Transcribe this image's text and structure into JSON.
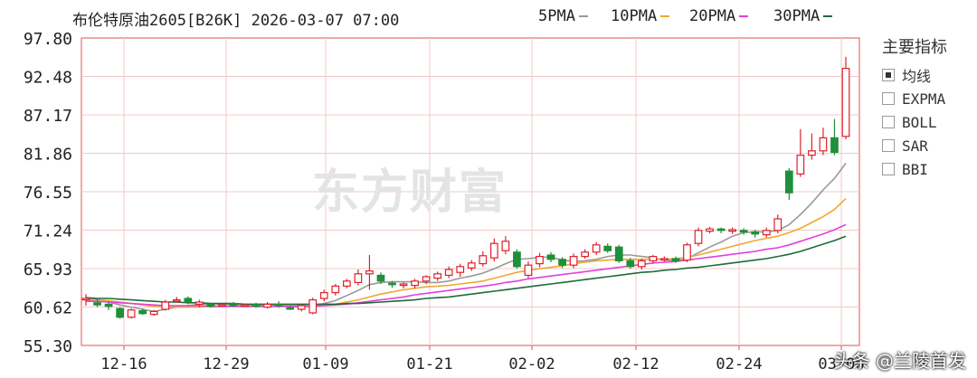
{
  "header": {
    "title": "布伦特原油2605[B26K] 2026-03-07 07:00"
  },
  "ma_legend": [
    {
      "label": "5PMA",
      "color": "#999999"
    },
    {
      "label": "10PMA",
      "color": "#f0a830"
    },
    {
      "label": "20PMA",
      "color": "#e040e0"
    },
    {
      "label": "30PMA",
      "color": "#1f6b3c"
    }
  ],
  "indicators": {
    "title": "主要指标",
    "items": [
      {
        "label": "均线",
        "checked": true
      },
      {
        "label": "EXPMA",
        "checked": false
      },
      {
        "label": "BOLL",
        "checked": false
      },
      {
        "label": "SAR",
        "checked": false
      },
      {
        "label": "BBI",
        "checked": false
      }
    ]
  },
  "watermark": "东方财富",
  "credit": "头条 @兰陵首发",
  "colors": {
    "up": "#e0202a",
    "down": "#1f8f3a",
    "axis": "#e05050"
  },
  "chart_data": {
    "type": "candlestick",
    "y_ticks": [
      "97.80",
      "92.48",
      "87.17",
      "81.86",
      "76.55",
      "71.24",
      "65.93",
      "60.62",
      "55.30"
    ],
    "ylim": [
      55.3,
      97.8
    ],
    "x_ticks": [
      "12-16",
      "12-29",
      "01-09",
      "01-21",
      "02-02",
      "02-12",
      "02-24",
      "03-06"
    ],
    "candles": [
      [
        61.6,
        61.8,
        60.8,
        62.4
      ],
      [
        61.2,
        60.9,
        60.6,
        61.8
      ],
      [
        61.0,
        60.7,
        60.2,
        61.4
      ],
      [
        60.4,
        59.2,
        59.0,
        60.6
      ],
      [
        59.2,
        60.2,
        59.0,
        60.4
      ],
      [
        60.1,
        59.7,
        59.5,
        60.4
      ],
      [
        59.6,
        60.0,
        59.4,
        60.2
      ],
      [
        60.3,
        61.3,
        60.1,
        61.6
      ],
      [
        61.5,
        61.6,
        61.2,
        62.0
      ],
      [
        61.8,
        61.3,
        61.0,
        62.1
      ],
      [
        61.0,
        61.3,
        60.6,
        61.6
      ],
      [
        61.0,
        60.7,
        60.5,
        61.2
      ],
      [
        60.8,
        60.9,
        60.6,
        61.1
      ],
      [
        61.1,
        60.8,
        60.6,
        61.3
      ],
      [
        60.8,
        60.9,
        60.6,
        61.1
      ],
      [
        61.0,
        60.7,
        60.5,
        61.2
      ],
      [
        60.6,
        61.0,
        60.4,
        61.3
      ],
      [
        61.0,
        60.8,
        60.5,
        61.4
      ],
      [
        60.5,
        60.4,
        60.2,
        60.8
      ],
      [
        60.3,
        60.8,
        60.0,
        61.1
      ],
      [
        59.8,
        61.6,
        59.6,
        61.9
      ],
      [
        61.8,
        62.6,
        61.4,
        63.0
      ],
      [
        62.6,
        63.5,
        62.2,
        63.8
      ],
      [
        63.5,
        64.2,
        63.2,
        64.5
      ],
      [
        64.0,
        65.2,
        63.6,
        65.8
      ],
      [
        65.2,
        65.6,
        63.0,
        67.8
      ],
      [
        65.0,
        64.2,
        63.8,
        65.4
      ],
      [
        63.9,
        63.7,
        63.3,
        64.2
      ],
      [
        63.6,
        63.8,
        63.2,
        64.0
      ],
      [
        63.6,
        64.2,
        63.2,
        64.5
      ],
      [
        64.2,
        64.8,
        63.8,
        65.0
      ],
      [
        64.6,
        65.2,
        64.2,
        65.5
      ],
      [
        65.0,
        65.8,
        64.6,
        66.2
      ],
      [
        65.4,
        66.2,
        64.8,
        66.6
      ],
      [
        66.0,
        66.7,
        65.6,
        67.1
      ],
      [
        66.6,
        67.7,
        66.2,
        68.3
      ],
      [
        67.4,
        69.4,
        66.9,
        70.1
      ],
      [
        68.4,
        69.7,
        67.9,
        70.4
      ],
      [
        68.2,
        66.2,
        65.9,
        68.6
      ],
      [
        65.0,
        66.4,
        64.6,
        66.9
      ],
      [
        66.6,
        67.6,
        66.1,
        68.1
      ],
      [
        67.8,
        67.2,
        66.8,
        68.2
      ],
      [
        67.2,
        66.4,
        66.0,
        67.5
      ],
      [
        66.4,
        67.6,
        66.0,
        68.0
      ],
      [
        67.6,
        68.2,
        67.3,
        68.6
      ],
      [
        68.2,
        69.2,
        67.8,
        69.6
      ],
      [
        69.0,
        68.4,
        68.1,
        69.4
      ],
      [
        68.9,
        67.0,
        66.7,
        69.2
      ],
      [
        67.0,
        66.2,
        65.9,
        67.4
      ],
      [
        66.2,
        67.0,
        65.8,
        67.3
      ],
      [
        67.0,
        67.6,
        66.6,
        67.8
      ],
      [
        67.2,
        67.3,
        66.9,
        67.6
      ],
      [
        67.3,
        67.0,
        66.7,
        67.6
      ],
      [
        67.1,
        69.2,
        66.8,
        69.5
      ],
      [
        69.4,
        71.2,
        69.0,
        71.6
      ],
      [
        71.1,
        71.4,
        70.8,
        71.7
      ],
      [
        71.4,
        71.2,
        70.8,
        71.6
      ],
      [
        71.1,
        71.3,
        70.7,
        71.6
      ],
      [
        71.2,
        71.0,
        70.6,
        71.5
      ],
      [
        71.0,
        70.7,
        70.2,
        71.3
      ],
      [
        70.6,
        71.2,
        70.2,
        71.6
      ],
      [
        71.2,
        72.8,
        70.8,
        73.4
      ],
      [
        79.4,
        76.4,
        75.4,
        79.8
      ],
      [
        79.0,
        81.6,
        78.6,
        85.2
      ],
      [
        81.6,
        82.2,
        81.0,
        84.6
      ],
      [
        82.2,
        84.0,
        81.6,
        85.4
      ],
      [
        84.0,
        82.0,
        81.6,
        86.6
      ],
      [
        84.2,
        93.6,
        83.8,
        95.2
      ]
    ],
    "series": [
      {
        "name": "5PMA",
        "values": [
          61.8,
          61.7,
          61.3,
          60.9,
          60.6,
          60.3,
          60.0,
          60.3,
          60.6,
          60.8,
          61.0,
          61.0,
          61.0,
          61.0,
          60.9,
          60.8,
          60.8,
          60.8,
          60.7,
          60.6,
          60.8,
          61.1,
          61.5,
          62.2,
          62.9,
          63.7,
          64.0,
          64.1,
          64.1,
          64.1,
          64.0,
          64.0,
          64.2,
          64.6,
          64.9,
          65.3,
          65.9,
          66.6,
          67.2,
          67.3,
          67.5,
          67.5,
          67.1,
          66.9,
          67.0,
          67.2,
          67.6,
          67.8,
          67.8,
          67.6,
          67.4,
          67.1,
          67.0,
          67.3,
          68.1,
          68.9,
          69.6,
          70.4,
          70.9,
          71.0,
          71.0,
          71.2,
          72.0,
          73.4,
          75.0,
          76.8,
          78.4,
          80.5
        ]
      },
      {
        "name": "10PMA",
        "values": [
          61.6,
          61.6,
          61.5,
          61.3,
          61.1,
          60.9,
          60.7,
          60.6,
          60.6,
          60.6,
          60.6,
          60.7,
          60.7,
          60.8,
          60.9,
          60.9,
          60.9,
          60.9,
          60.9,
          60.8,
          60.8,
          60.9,
          61.0,
          61.3,
          61.6,
          62.0,
          62.4,
          62.7,
          63.0,
          63.2,
          63.4,
          63.5,
          63.6,
          63.8,
          64.0,
          64.2,
          64.6,
          65.0,
          65.4,
          65.7,
          65.9,
          66.1,
          66.3,
          66.6,
          66.8,
          67.0,
          67.1,
          67.2,
          67.2,
          67.2,
          67.2,
          67.2,
          67.3,
          67.5,
          67.8,
          68.2,
          68.6,
          69.0,
          69.4,
          69.8,
          70.1,
          70.4,
          70.9,
          71.5,
          72.3,
          73.1,
          74.1,
          75.6
        ]
      },
      {
        "name": "20PMA",
        "values": [
          61.4,
          61.4,
          61.3,
          61.2,
          61.1,
          61.0,
          60.9,
          60.8,
          60.8,
          60.8,
          60.8,
          60.7,
          60.7,
          60.7,
          60.7,
          60.7,
          60.7,
          60.7,
          60.7,
          60.7,
          60.7,
          60.8,
          60.9,
          61.0,
          61.2,
          61.4,
          61.6,
          61.8,
          62.0,
          62.3,
          62.5,
          62.7,
          62.9,
          63.1,
          63.3,
          63.5,
          63.7,
          64.0,
          64.2,
          64.5,
          64.7,
          64.9,
          65.1,
          65.3,
          65.5,
          65.7,
          65.9,
          66.1,
          66.3,
          66.5,
          66.7,
          66.8,
          66.9,
          67.1,
          67.3,
          67.5,
          67.7,
          67.9,
          68.1,
          68.3,
          68.6,
          68.8,
          69.2,
          69.7,
          70.2,
          70.7,
          71.3,
          72.0
        ]
      },
      {
        "name": "30PMA",
        "values": [
          61.9,
          61.8,
          61.8,
          61.7,
          61.6,
          61.5,
          61.4,
          61.3,
          61.3,
          61.2,
          61.2,
          61.1,
          61.1,
          61.1,
          61.0,
          61.0,
          61.0,
          61.0,
          61.0,
          61.0,
          61.0,
          61.0,
          61.0,
          61.1,
          61.1,
          61.2,
          61.3,
          61.4,
          61.5,
          61.6,
          61.8,
          61.9,
          62.0,
          62.2,
          62.4,
          62.6,
          62.8,
          63.0,
          63.2,
          63.4,
          63.6,
          63.8,
          64.0,
          64.2,
          64.4,
          64.6,
          64.8,
          65.0,
          65.2,
          65.4,
          65.5,
          65.7,
          65.8,
          66.0,
          66.1,
          66.3,
          66.5,
          66.7,
          66.9,
          67.1,
          67.3,
          67.6,
          67.9,
          68.3,
          68.8,
          69.3,
          69.8,
          70.4
        ]
      }
    ]
  }
}
